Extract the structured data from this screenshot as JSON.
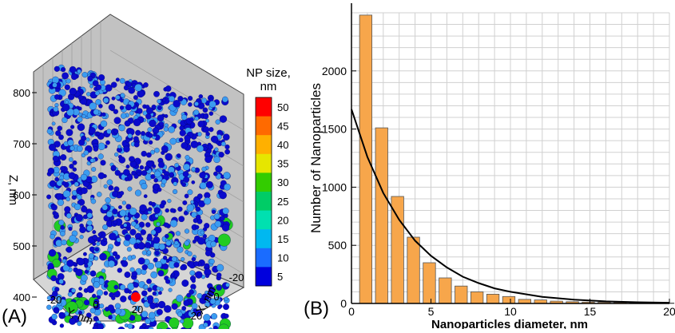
{
  "panel_a": {
    "label": "(A)",
    "colorbar": {
      "title_line1": "NP size,",
      "title_line2": "nm",
      "levels": [
        "50",
        "45",
        "40",
        "35",
        "30",
        "25",
        "20",
        "15",
        "10",
        "5"
      ],
      "colors": [
        "#ff0000",
        "#ff6a00",
        "#ffb000",
        "#e6e600",
        "#33cc00",
        "#00cc66",
        "#00e0b0",
        "#00b8f0",
        "#1a6cff",
        "#0000dd"
      ]
    },
    "z_axis": {
      "label": "Z, nm",
      "ticks": [
        "800",
        "700",
        "600",
        "500",
        "400"
      ]
    },
    "y_axis": {
      "label": "Y, nm",
      "ticks": [
        "-20",
        "0",
        "20"
      ]
    },
    "x_axis": {
      "label": "X, nm",
      "ticks": [
        "-20",
        "0",
        "20"
      ]
    },
    "colors": {
      "particle_dark": "#0a0acc",
      "particle_light": "#3b9cf0",
      "particle_green": "#22cc22",
      "particle_red": "#ff0000",
      "box_floor": "#d0d0d0",
      "box_wall": "#bdbdbd"
    }
  },
  "panel_b": {
    "label": "(B)",
    "bar_color": "#f7a64b",
    "bar_edge": "#555555",
    "curve_color": "#000000"
  },
  "chart_data": {
    "type": "bar",
    "title": "",
    "xlabel": "Nanoparticles diameter, nm",
    "ylabel": "Number of Nanoparticles",
    "xlim": [
      0,
      20
    ],
    "ylim": [
      0,
      2500
    ],
    "x_ticks": [
      "0",
      "5",
      "10",
      "15",
      "20"
    ],
    "y_ticks": [
      "0",
      "500",
      "1000",
      "1500",
      "2000"
    ],
    "grid": true,
    "bars": {
      "x": [
        1,
        2,
        3,
        4,
        5,
        6,
        7,
        8,
        9,
        10,
        11,
        12,
        13,
        14,
        15,
        16,
        17,
        18,
        19,
        20
      ],
      "values": [
        2480,
        1510,
        920,
        570,
        350,
        220,
        150,
        100,
        80,
        60,
        35,
        30,
        20,
        15,
        12,
        10,
        8,
        6,
        5,
        4
      ]
    },
    "fit_curve": {
      "x": [
        0,
        1,
        2,
        3,
        4,
        5,
        6,
        7,
        8,
        9,
        10,
        12,
        14,
        16,
        18,
        20
      ],
      "values": [
        1670,
        1260,
        950,
        720,
        540,
        410,
        310,
        230,
        175,
        130,
        100,
        57,
        32,
        18,
        10,
        6
      ]
    }
  }
}
